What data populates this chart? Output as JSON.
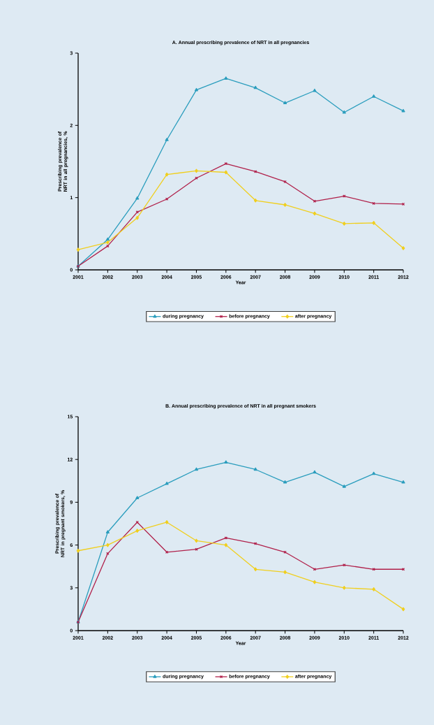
{
  "chart_data": [
    {
      "type": "line",
      "title": "A. Annual prescribing prevalence of NRT in all pregnancies",
      "xlabel": "Year",
      "ylabel": "Prescribing prevalence of NRT in all pregnancies, %",
      "x": [
        2001,
        2002,
        2003,
        2004,
        2005,
        2006,
        2007,
        2008,
        2009,
        2010,
        2011,
        2012
      ],
      "xlim": [
        2001,
        2012
      ],
      "xticks": [
        2001,
        2002,
        2003,
        2004,
        2005,
        2006,
        2007,
        2008,
        2009,
        2010,
        2011,
        2012
      ],
      "ylim": [
        0,
        3
      ],
      "yticks": [
        0,
        1,
        2,
        3
      ],
      "grid": false,
      "legend": "bottom",
      "line_style": "solid",
      "series": [
        {
          "name": "during pregnancy",
          "color": "#2a9dbd",
          "marker": "triangle",
          "values": [
            0.05,
            0.42,
            0.99,
            1.8,
            2.49,
            2.65,
            2.52,
            2.31,
            2.48,
            2.18,
            2.4,
            2.2
          ]
        },
        {
          "name": "before pregnancy",
          "color": "#b0204a",
          "marker": "cross",
          "values": [
            0.05,
            0.33,
            0.8,
            0.98,
            1.27,
            1.47,
            1.36,
            1.22,
            0.95,
            1.02,
            0.92,
            0.91
          ]
        },
        {
          "name": "after pregnancy",
          "color": "#f0cf1e",
          "marker": "diamond",
          "values": [
            0.28,
            0.38,
            0.72,
            1.32,
            1.37,
            1.35,
            0.96,
            0.9,
            0.78,
            0.64,
            0.65,
            0.3
          ]
        }
      ]
    },
    {
      "type": "line",
      "title": "B. Annual prescribing prevalence of NRT in all pregnant smokers",
      "xlabel": "Year",
      "ylabel": "Prescribing prevalence of NRT in pregnant smokers, %",
      "x": [
        2001,
        2002,
        2003,
        2004,
        2005,
        2006,
        2007,
        2008,
        2009,
        2010,
        2011,
        2012
      ],
      "xlim": [
        2001,
        2012
      ],
      "xticks": [
        2001,
        2002,
        2003,
        2004,
        2005,
        2006,
        2007,
        2008,
        2009,
        2010,
        2011,
        2012
      ],
      "ylim": [
        0,
        15
      ],
      "yticks": [
        0,
        3,
        6,
        9,
        12,
        15
      ],
      "grid": false,
      "legend": "bottom",
      "line_style": "solid",
      "series": [
        {
          "name": "during pregnancy",
          "color": "#2a9dbd",
          "marker": "triangle",
          "values": [
            0.6,
            6.9,
            9.3,
            10.3,
            11.3,
            11.8,
            11.3,
            10.4,
            11.1,
            10.1,
            11.0,
            10.4
          ]
        },
        {
          "name": "before pregnancy",
          "color": "#b0204a",
          "marker": "cross",
          "values": [
            0.6,
            5.4,
            7.6,
            5.5,
            5.7,
            6.5,
            6.1,
            5.5,
            4.3,
            4.6,
            4.3,
            4.3
          ]
        },
        {
          "name": "after pregnancy",
          "color": "#f0cf1e",
          "marker": "diamond",
          "values": [
            5.6,
            6.0,
            7.0,
            7.6,
            6.3,
            6.0,
            4.3,
            4.1,
            3.4,
            3.0,
            2.9,
            1.5
          ]
        }
      ]
    }
  ]
}
